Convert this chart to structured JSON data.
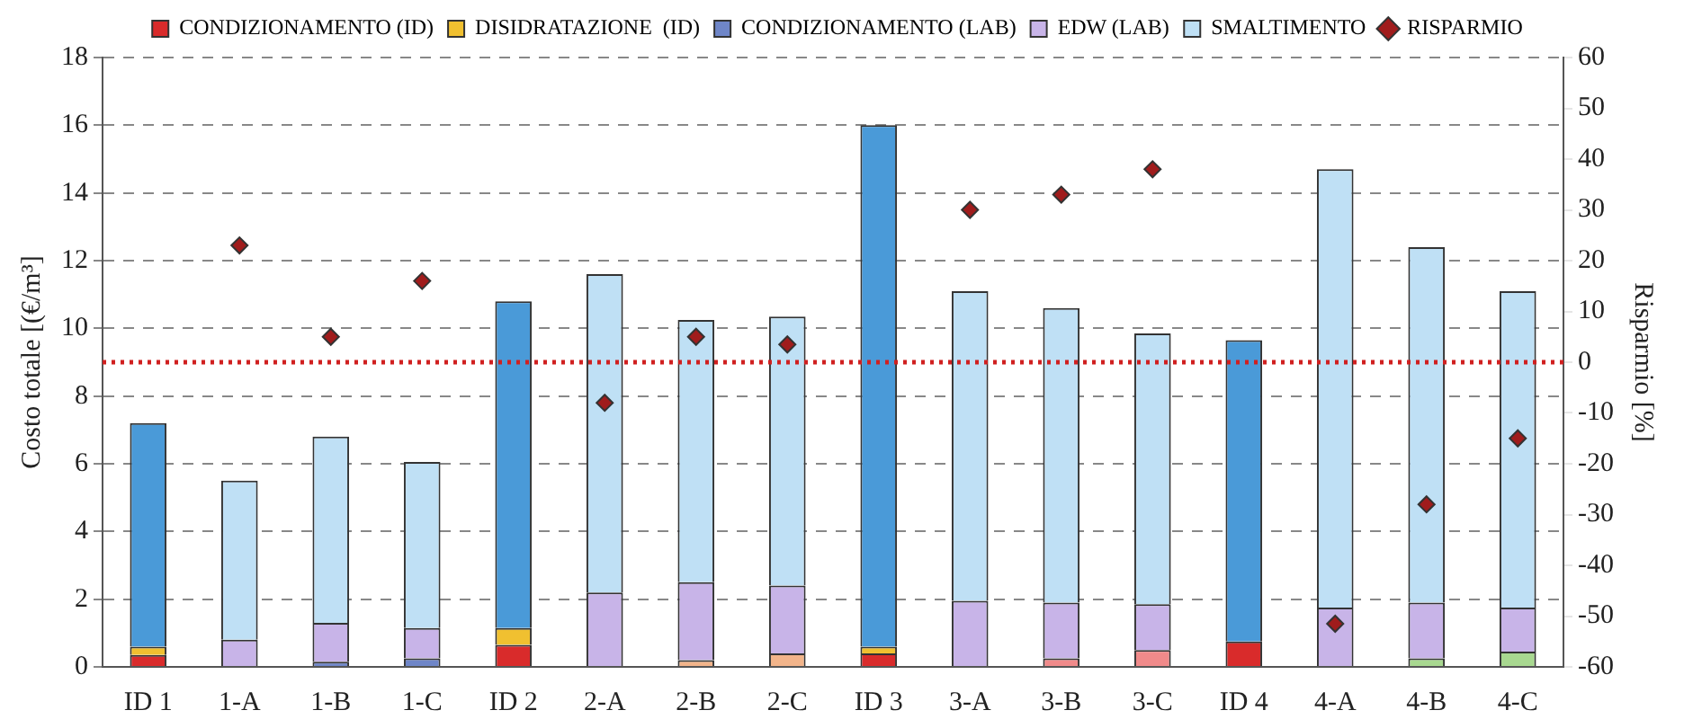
{
  "chart_data": {
    "type": "bar",
    "stacked": true,
    "ylabel": "Costo totale [(€/m³]",
    "y2label": "Risparmio [%]",
    "categories": [
      "ID 1",
      "1-A",
      "1-B",
      "1-C",
      "ID 2",
      "2-A",
      "2-B",
      "2-C",
      "ID 3",
      "3-A",
      "3-B",
      "3-C",
      "ID 4",
      "4-A",
      "4-B",
      "4-C"
    ],
    "ylim": [
      0,
      18
    ],
    "yticks": [
      0,
      2,
      4,
      6,
      8,
      10,
      12,
      14,
      16,
      18
    ],
    "y2lim": [
      -60,
      60
    ],
    "y2ticks": [
      -60,
      -50,
      -40,
      -30,
      -20,
      -10,
      0,
      10,
      20,
      30,
      40,
      50,
      60
    ],
    "grid": "y",
    "legend": "top",
    "series": [
      {
        "name": "CONDIZIONAMENTO (ID)",
        "color": "#d92b2b",
        "values": [
          0.35,
          0,
          0,
          0,
          0.65,
          0,
          0,
          0,
          0.4,
          0,
          0,
          0,
          0.75,
          0,
          0,
          0
        ]
      },
      {
        "name": "DISIDRATAZIONE  (ID)",
        "color": "#f0c030",
        "values": [
          0.25,
          0,
          0,
          0,
          0.5,
          0,
          0,
          0,
          0.2,
          0,
          0,
          0,
          0,
          0,
          0,
          0
        ]
      },
      {
        "name": "CONDIZIONAMENTO (LAB)",
        "color": "#6f86c8",
        "colors": [
          "#6f86c8",
          "#6f86c8",
          "#6f86c8",
          "#6f86c8",
          "#6f86c8",
          "#6f86c8",
          "#f2b48a",
          "#f2b48a",
          "#6f86c8",
          "#6f86c8",
          "#f08a8a",
          "#f08a8a",
          "#6f86c8",
          "#6f86c8",
          "#a8d890",
          "#a8d890"
        ],
        "values": [
          0,
          0,
          0.15,
          0.25,
          0,
          0,
          0.2,
          0.4,
          0,
          0,
          0.25,
          0.5,
          0,
          0,
          0.25,
          0.45
        ]
      },
      {
        "name": "EDW (LAB)",
        "color": "#c8b4e8",
        "values": [
          0,
          0.8,
          1.15,
          0.9,
          0,
          2.2,
          2.3,
          2.0,
          0,
          1.95,
          1.65,
          1.35,
          0,
          1.75,
          1.65,
          1.3
        ]
      },
      {
        "name": "SMALTIMENTO",
        "color": "#bfe0f5",
        "colors": [
          "#4a9ad8",
          "#bfe0f5",
          "#bfe0f5",
          "#bfe0f5",
          "#4a9ad8",
          "#bfe0f5",
          "#bfe0f5",
          "#bfe0f5",
          "#4a9ad8",
          "#bfe0f5",
          "#bfe0f5",
          "#bfe0f5",
          "#4a9ad8",
          "#bfe0f5",
          "#bfe0f5",
          "#bfe0f5"
        ],
        "values": [
          6.6,
          4.7,
          5.5,
          4.9,
          9.65,
          9.4,
          7.75,
          7.95,
          15.4,
          9.15,
          8.7,
          8.0,
          8.9,
          12.95,
          10.5,
          9.35
        ]
      },
      {
        "name": "RISPARMIO",
        "type": "scatter",
        "axis": "y2",
        "marker": "diamond",
        "color": "#a01c1c",
        "values": [
          null,
          23,
          5,
          16,
          null,
          -8,
          5,
          3.5,
          null,
          30,
          33,
          38,
          null,
          -51.5,
          -28,
          -15
        ]
      }
    ],
    "ref_lines": [
      {
        "axis": "y2",
        "value": 0,
        "color": "#d02020",
        "line_style": "dotted"
      }
    ]
  }
}
